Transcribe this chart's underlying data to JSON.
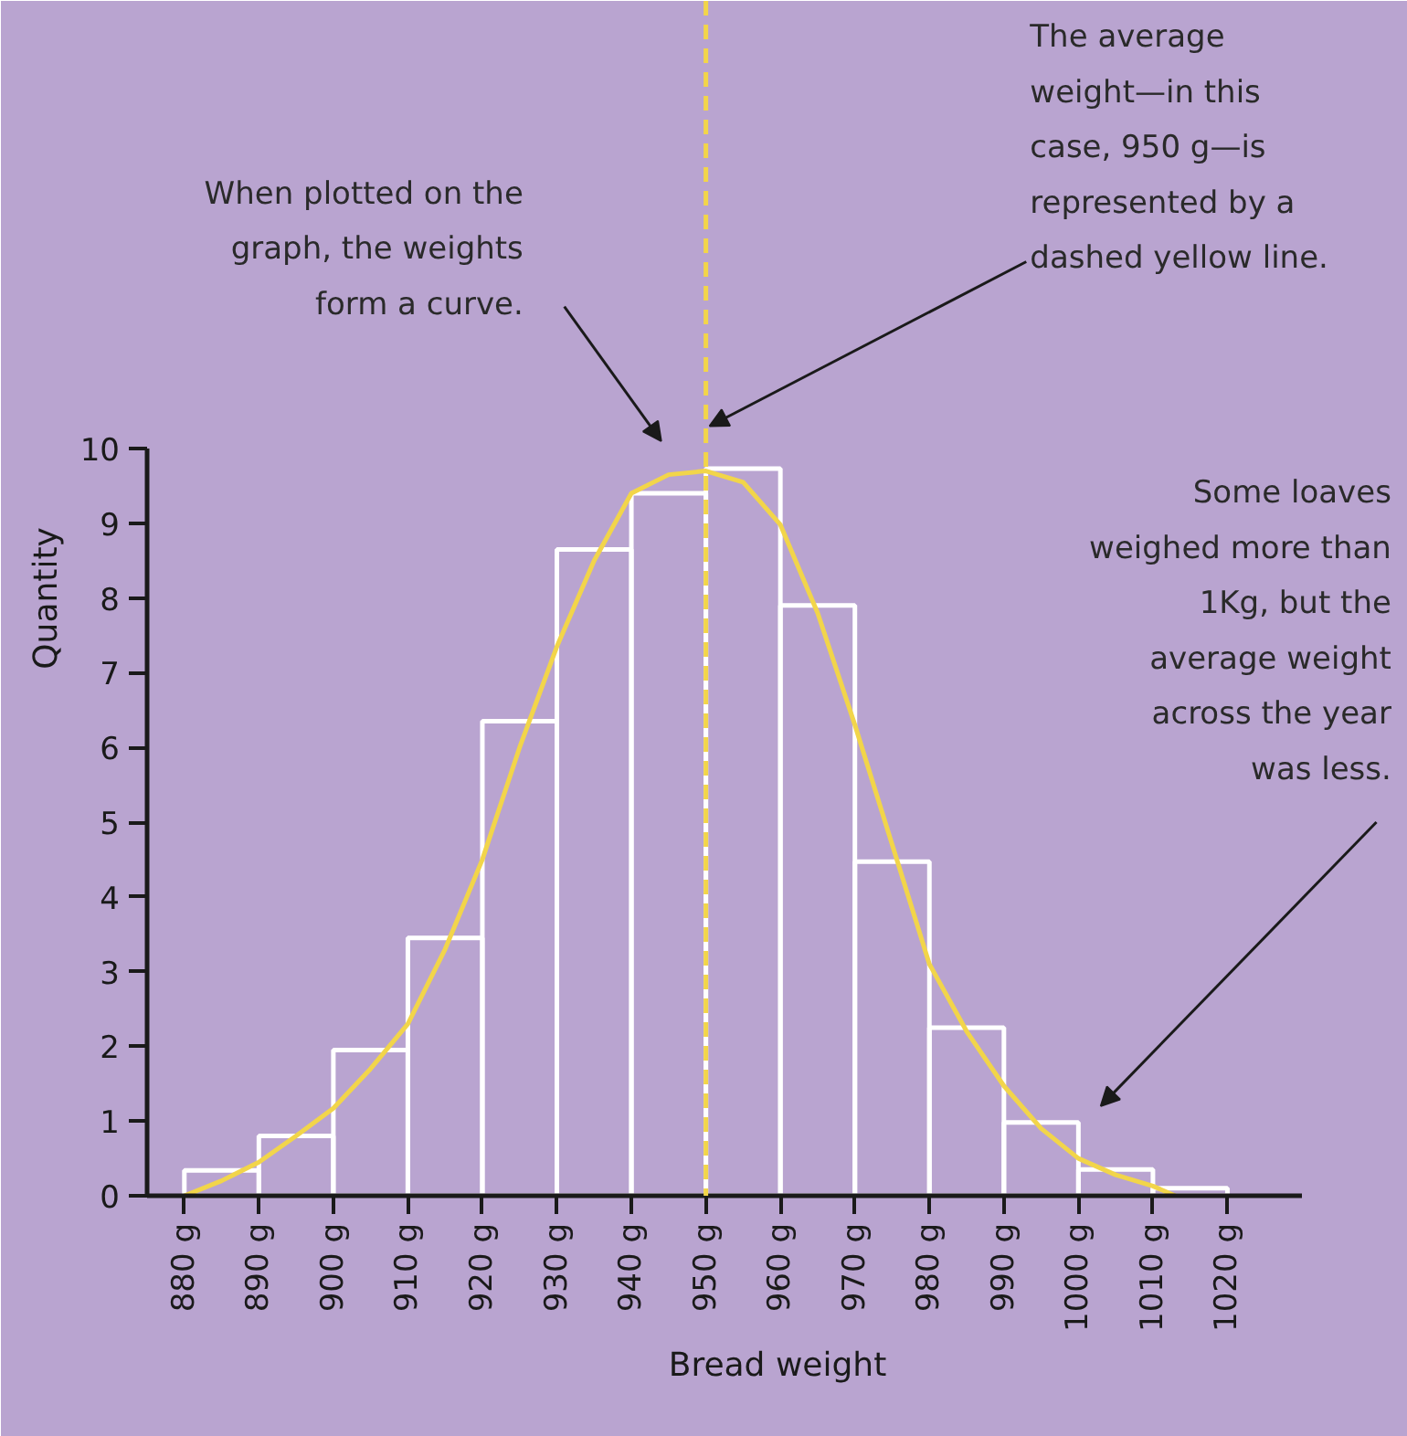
{
  "chart_data": {
    "type": "histogram",
    "xlabel": "Bread weight",
    "ylabel": "Quantity",
    "series": [
      {
        "color": "#ffffff",
        "bins": [
          880,
          890,
          900,
          910,
          920,
          930,
          940,
          950,
          960,
          970,
          980,
          990,
          1000,
          1010,
          1020
        ],
        "values": [
          0.34,
          0.8,
          1.95,
          3.45,
          6.35,
          8.65,
          9.4,
          9.73,
          7.9,
          4.47,
          2.25,
          0.98,
          0.35,
          0.1
        ]
      },
      {
        "type": "line",
        "color": "#f2d54a",
        "x": [
          880,
          885,
          890,
          895,
          900,
          905,
          910,
          915,
          920,
          925,
          930,
          935,
          940,
          945,
          950,
          955,
          960,
          965,
          970,
          975,
          980,
          985,
          990,
          995,
          1000,
          1005,
          1010,
          1013
        ],
        "values": [
          0,
          0.2,
          0.45,
          0.8,
          1.17,
          1.7,
          2.3,
          3.3,
          4.5,
          6.0,
          7.35,
          8.5,
          9.4,
          9.65,
          9.7,
          9.55,
          8.98,
          7.8,
          6.3,
          4.7,
          3.1,
          2.2,
          1.47,
          0.9,
          0.5,
          0.28,
          0.13,
          0
        ]
      }
    ],
    "xlim": [
      875,
      1030
    ],
    "ylim": [
      0,
      10
    ],
    "xticks": [
      {
        "value": 880,
        "label": "880 g"
      },
      {
        "value": 890,
        "label": "890 g"
      },
      {
        "value": 900,
        "label": "900 g"
      },
      {
        "value": 910,
        "label": "910 g"
      },
      {
        "value": 920,
        "label": "920 g"
      },
      {
        "value": 930,
        "label": "930 g"
      },
      {
        "value": 940,
        "label": "940 g"
      },
      {
        "value": 950,
        "label": "950 g"
      },
      {
        "value": 960,
        "label": "960 g"
      },
      {
        "value": 970,
        "label": "970 g"
      },
      {
        "value": 980,
        "label": "980 g"
      },
      {
        "value": 990,
        "label": "990 g"
      },
      {
        "value": 1000,
        "label": "1000 g"
      },
      {
        "value": 1010,
        "label": "1010 g"
      },
      {
        "value": 1020,
        "label": "1020 g"
      }
    ],
    "yticks": [
      0,
      1,
      2,
      3,
      4,
      5,
      6,
      7,
      8,
      9,
      10
    ],
    "ref_lines": [
      {
        "axis": "x",
        "value": 950,
        "color": "#f2d54a",
        "line_style": "dashed"
      }
    ],
    "annotations": [
      "When plotted on the graph, the weights form a curve.",
      "The average weight—in this case, 950 g—is represented by a dashed yellow line.",
      "Some loaves weighed more than 1Kg, but the average weight across the year was less."
    ],
    "grid": false
  }
}
